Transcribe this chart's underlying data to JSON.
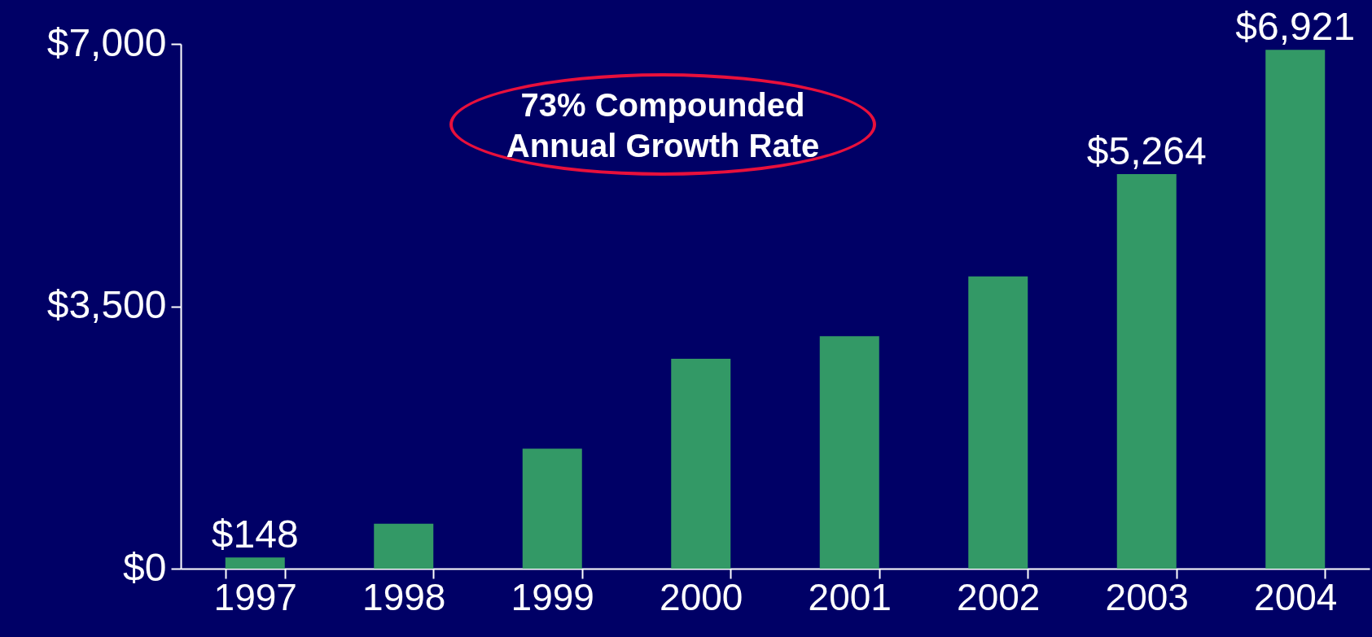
{
  "chart_data": {
    "type": "bar",
    "categories": [
      "1997",
      "1998",
      "1999",
      "2000",
      "2001",
      "2002",
      "2003",
      "2004"
    ],
    "values": [
      148,
      600,
      1600,
      2800,
      3100,
      3900,
      5264,
      6921
    ],
    "value_labels": [
      "$148",
      null,
      null,
      null,
      null,
      null,
      "$5,264",
      "$6,921"
    ],
    "color": "#339966",
    "ylim": [
      0,
      7000
    ],
    "yticks": [
      {
        "value": 0,
        "label": "$0"
      },
      {
        "value": 3500,
        "label": "$3,500"
      },
      {
        "value": 7000,
        "label": "$7,000"
      }
    ],
    "annotations": [
      "73% Compounded Annual Growth Rate"
    ],
    "grid": false
  }
}
